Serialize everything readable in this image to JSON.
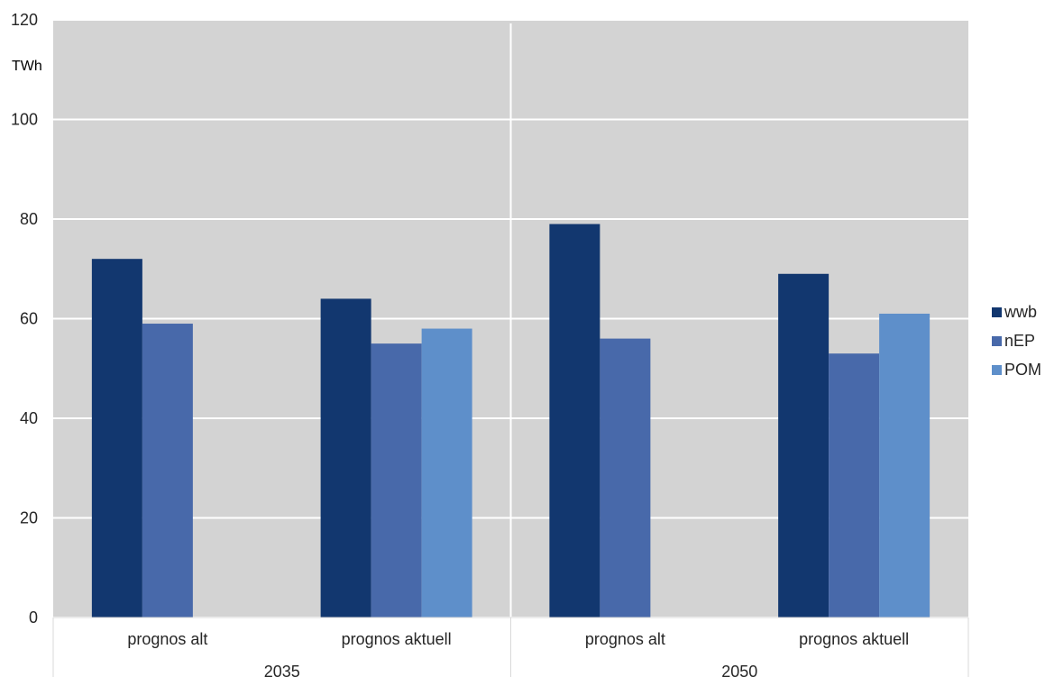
{
  "chart_data": {
    "type": "bar",
    "ylabel": "TWh",
    "ylim": [
      0,
      120
    ],
    "yticks": [
      0,
      20,
      40,
      60,
      80,
      100,
      120
    ],
    "grid": true,
    "legend_position": "right",
    "groups": [
      {
        "label": "2035",
        "categories": [
          "prognos alt",
          "prognos aktuell"
        ]
      },
      {
        "label": "2050",
        "categories": [
          "prognos alt",
          "prognos aktuell"
        ]
      }
    ],
    "series": [
      {
        "name": "wwb",
        "color": "#12376F",
        "values": [
          72,
          64,
          79,
          69
        ]
      },
      {
        "name": "nEP",
        "color": "#4869AA",
        "values": [
          59,
          55,
          56,
          53
        ]
      },
      {
        "name": "POM",
        "color": "#5E8FCA",
        "values": [
          null,
          58,
          null,
          61
        ]
      }
    ]
  },
  "colors": {
    "plot_background": "#D3D3D3",
    "gridline": "#FFFFFF",
    "axis_border": "#D9D9D9"
  }
}
